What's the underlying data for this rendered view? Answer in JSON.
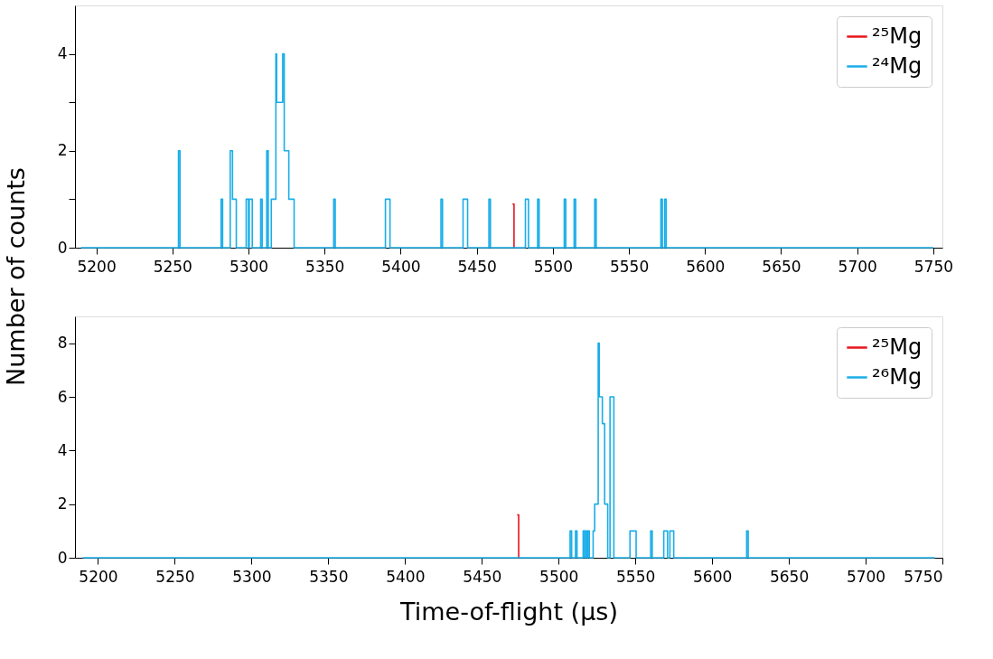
{
  "chart_data": [
    {
      "type": "step",
      "ylabel": "Number of counts",
      "xlim": [
        5186,
        5756
      ],
      "ylim": [
        0,
        5
      ],
      "xticks": [
        5200,
        5250,
        5300,
        5350,
        5400,
        5450,
        5500,
        5550,
        5600,
        5650,
        5700,
        5750
      ],
      "yticks": [
        0,
        {
          "value": 1,
          "label": null
        },
        2,
        {
          "value": 3,
          "label": null
        },
        4
      ],
      "grid": false,
      "legend": "top right",
      "series": [
        {
          "name": "²⁵Mg",
          "color": "#e8141c",
          "x": [
            5473.5,
            5474.5
          ],
          "values": [
            0.9,
            0
          ]
        },
        {
          "name": "²⁴Mg",
          "color": "#1aaee8",
          "x": [
            5190,
            5254,
            5255,
            5282,
            5283,
            5288,
            5289.5,
            5292,
            5298.5,
            5300,
            5300.5,
            5302.5,
            5308,
            5309,
            5312,
            5313,
            5315,
            5318,
            5318.5,
            5322.5,
            5323.5,
            5326.5,
            5330,
            5356,
            5357,
            5390,
            5393,
            5426.5,
            5427.5,
            5441,
            5444,
            5458,
            5459,
            5482,
            5484,
            5490,
            5491,
            5507.5,
            5508.5,
            5514,
            5515,
            5527.5,
            5528.5,
            5571,
            5572,
            5573.5,
            5574.5,
            5750
          ],
          "values": [
            0,
            2,
            0,
            1,
            0,
            2,
            1,
            0,
            1,
            0,
            1,
            0,
            1,
            0,
            2,
            0,
            1,
            4,
            3,
            4,
            2,
            1,
            0,
            1,
            0,
            1,
            0,
            1,
            0,
            1,
            0,
            1,
            0,
            1,
            0,
            1,
            0,
            1,
            0,
            1,
            0,
            1,
            0,
            1,
            0,
            1,
            0,
            0
          ]
        }
      ]
    },
    {
      "type": "step",
      "xlabel": "Time-of-flight (µs)",
      "xlim": [
        5185,
        5750
      ],
      "ylim": [
        0,
        9
      ],
      "xticks": [
        5200,
        5250,
        5300,
        5350,
        5400,
        5450,
        5500,
        5550,
        5600,
        5650,
        5700,
        5750
      ],
      "yticks": [
        0,
        2,
        4,
        6,
        8
      ],
      "grid": false,
      "legend": "top right",
      "series": [
        {
          "name": "²⁵Mg",
          "color": "#e8141c",
          "x": [
            5473,
            5474
          ],
          "values": [
            1.6,
            0
          ]
        },
        {
          "name": "²⁶Mg",
          "color": "#1aaee8",
          "x": [
            5190,
            5507.5,
            5508.5,
            5511,
            5512,
            5516,
            5517,
            5517.5,
            5518.5,
            5519,
            5520,
            5522.5,
            5523.5,
            5525.8,
            5526.5,
            5528.5,
            5530,
            5532,
            5533.5,
            5536,
            5546.5,
            5550.5,
            5560,
            5561,
            5568.5,
            5571,
            5572.5,
            5575,
            5622.5,
            5623.5,
            5745
          ],
          "values": [
            0,
            1,
            0,
            1,
            0,
            1,
            0,
            1,
            0,
            1,
            0,
            1,
            2,
            8,
            6,
            5,
            2,
            0,
            6,
            0,
            1,
            0,
            1,
            0,
            1,
            0,
            1,
            0,
            1,
            0,
            0
          ]
        }
      ]
    }
  ]
}
